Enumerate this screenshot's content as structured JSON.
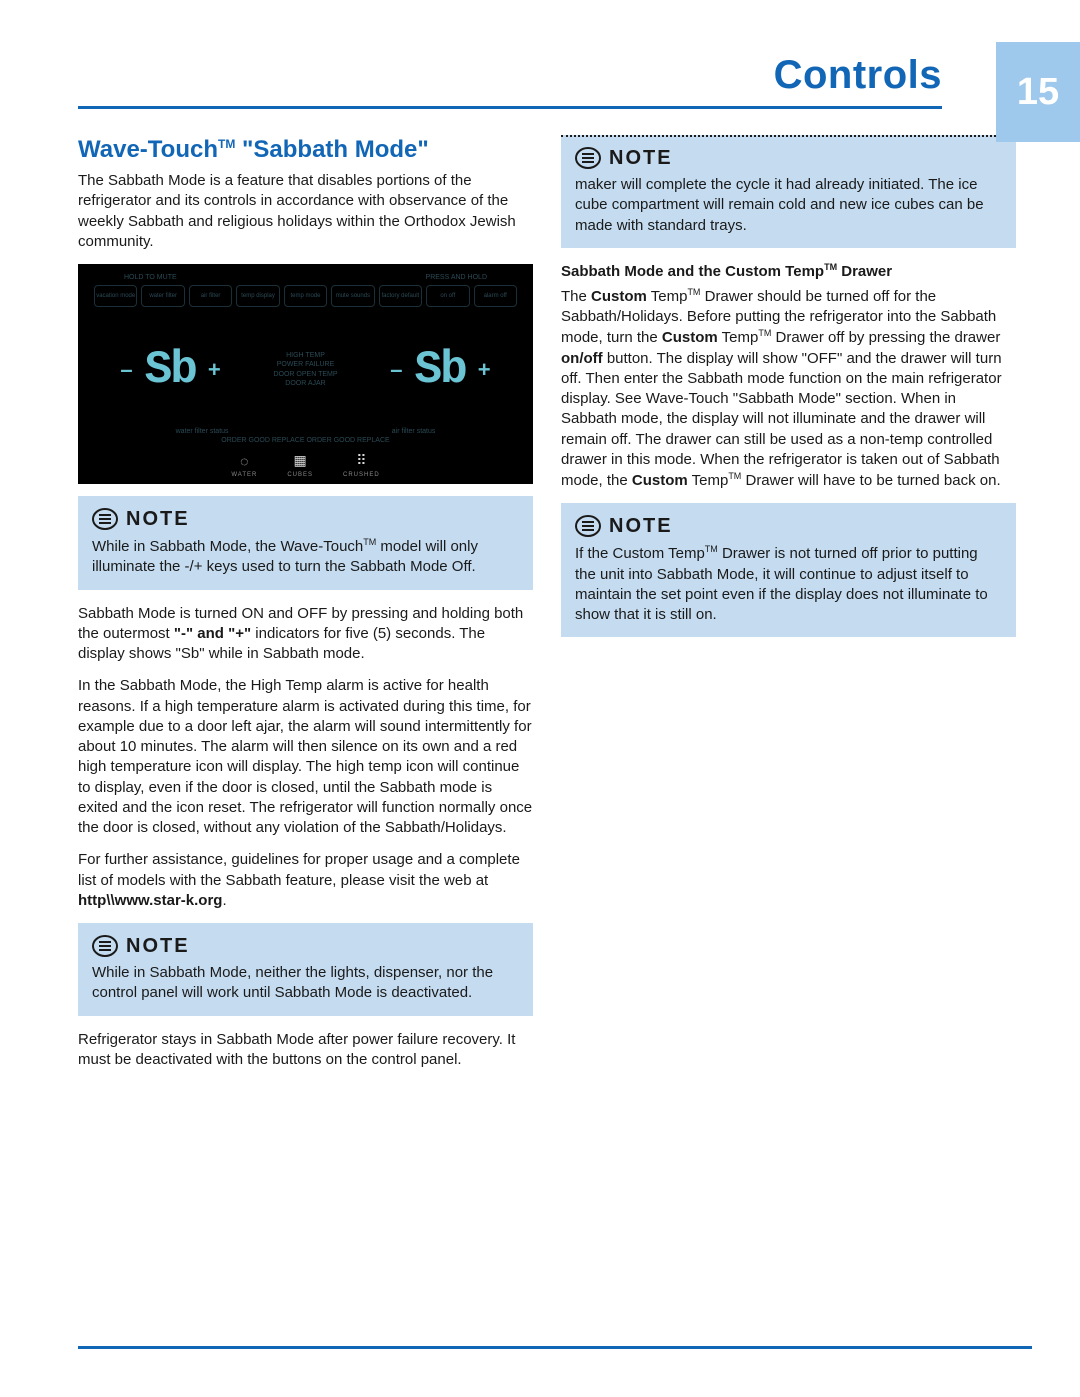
{
  "header": {
    "title": "Controls",
    "page_number": "15",
    "accent_color": "#1266b6",
    "tab_bg": "#9ec8ec"
  },
  "left_column": {
    "section_title_pre": "Wave-Touch",
    "section_title_tm": "TM",
    "section_title_post": " \"Sabbath Mode\"",
    "intro": "The Sabbath Mode is a feature that disables portions of the refrigerator and its controls in accordance with observance of the weekly Sabbath and religious holidays within the Orthodox Jewish community.",
    "panel": {
      "top_left": "HOLD TO MUTE",
      "top_right": "PRESS AND HOLD",
      "buttons": [
        "vacation mode",
        "water filter",
        "air filter",
        "temp display",
        "temp mode",
        "mute sounds",
        "factory default",
        "on off",
        "alarm off"
      ],
      "mid_label_lines": [
        "HIGH TEMP",
        "POWER FAILURE",
        "DOOR OPEN TEMP",
        "DOOR AJAR"
      ],
      "sb": "Sb",
      "minus": "–",
      "plus": "+",
      "status_left": "water filter status",
      "status_right": "air filter status",
      "status_words": "ORDER GOOD REPLACE ORDER GOOD REPLACE",
      "dispenser": {
        "water": "WATER",
        "cubes": "CUBES",
        "crushed": "CRUSHED"
      }
    },
    "note1": {
      "label": "NOTE",
      "text_pre": "While in Sabbath Mode, the Wave-Touch",
      "text_tm": "TM",
      "text_post": " model will only illuminate the -/+ keys used to turn the Sabbath Mode Off."
    },
    "para2_a": "Sabbath Mode is turned ON and OFF by pressing and holding both the outermost ",
    "para2_b_bold": "\"-\" and \"+\"",
    "para2_c": " indicators for five (5) seconds. The display shows \"Sb\"  while in Sabbath mode.",
    "para3": "In the Sabbath Mode, the High Temp alarm is active for health reasons. If a high temperature alarm is activated during this time, for example due to a door left ajar, the alarm will sound intermittently for about 10 minutes.  The alarm will then silence on its own and a red high temperature icon will display. The high temp icon will continue to display, even if the door is closed, until the Sabbath mode is exited and the icon reset. The refrigerator will function normally once the door is closed, without any violation of the Sabbath/Holidays.",
    "para4_a": "For further assistance, guidelines for proper usage and a complete list of models with the Sabbath feature, please visit the web at ",
    "para4_b_bold": "http\\\\www.star-k.org",
    "para4_c": ".",
    "note2": {
      "label": "NOTE",
      "text": "While in Sabbath Mode, neither the lights, dispenser, nor the control panel will work until Sabbath Mode is deactivated."
    },
    "para5": "Refrigerator stays in Sabbath Mode after power failure recovery.  It must be deactivated with the buttons on the control panel."
  },
  "right_column": {
    "note3": {
      "label": "NOTE",
      "text": "maker will complete the cycle it had already initiated.  The ice cube compartment will remain cold and new ice cubes can be made with standard trays."
    },
    "subhead_a": "Sabbath Mode and the Custom Temp",
    "subhead_tm": "TM",
    "subhead_b": " Drawer",
    "para6": "The Custom TempTM Drawer should be turned off for the Sabbath/Holidays.  Before putting the refrigerator into the Sabbath mode, turn the Custom TempTM Drawer off by pressing the drawer on/off button.  The display will show \"OFF\" and the drawer will turn off.  Then enter the Sabbath mode function on the main refrigerator display.  See Wave-Touch \"Sabbath Mode\" section.  When in Sabbath mode, the display will not illuminate and the drawer will remain off.  The drawer can still be used as a non-temp controlled drawer in this mode. When the refrigerator is taken out of Sabbath mode, the Custom TempTM Drawer will have to be turned back on.",
    "note4": {
      "label": "NOTE",
      "text": "If the Custom TempTM Drawer is not turned off prior to putting the unit into Sabbath Mode, it will continue to adjust itself to maintain the set point even if the display does not illuminate to show that it is still on."
    }
  }
}
